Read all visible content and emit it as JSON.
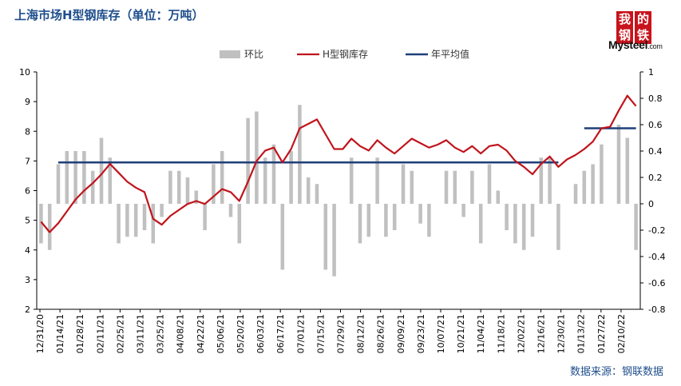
{
  "title": "上海市场H型钢库存（单位：万吨）",
  "source": "数据来源：钢联数据",
  "logo": {
    "chars": [
      "我",
      "的",
      "钢",
      "铁"
    ],
    "brand": "Mysteel",
    "suffix": ".com"
  },
  "colors": {
    "bar": "#c0c0c0",
    "line": "#c0141c",
    "avg": "#1f3f7a",
    "title": "#1f4e8c",
    "axis": "#000000"
  },
  "chart_data": {
    "type": "bar+line",
    "legend": [
      "环比",
      "H型钢库存",
      "年平均值"
    ],
    "legend_position": "top-center",
    "y_left": {
      "min": 2,
      "max": 10,
      "ticks": [
        2,
        3,
        4,
        5,
        6,
        7,
        8,
        9,
        10
      ]
    },
    "y_right": {
      "min": -0.8,
      "max": 1,
      "ticks": [
        -0.8,
        -0.6,
        -0.4,
        -0.2,
        0,
        0.2,
        0.4,
        0.6,
        0.8,
        1
      ]
    },
    "x_labels": [
      "12/31/20",
      "01/14/21",
      "01/28/21",
      "02/11/21",
      "02/25/21",
      "03/11/21",
      "03/25/21",
      "04/08/21",
      "04/22/21",
      "05/06/21",
      "05/20/21",
      "06/03/21",
      "06/17/21",
      "07/01/21",
      "07/15/21",
      "07/29/21",
      "08/12/21",
      "08/26/21",
      "09/09/21",
      "09/23/21",
      "10/07/21",
      "10/21/21",
      "11/04/21",
      "11/18/21",
      "12/02/21",
      "12/16/21",
      "12/30/21",
      "01/13/22",
      "01/27/22",
      "02/10/22"
    ],
    "stock": [
      4.95,
      4.6,
      4.9,
      5.3,
      5.7,
      6.0,
      6.25,
      6.55,
      6.9,
      6.6,
      6.3,
      6.1,
      5.95,
      5.05,
      4.85,
      5.15,
      5.35,
      5.55,
      5.65,
      5.55,
      5.8,
      6.05,
      5.95,
      5.65,
      6.3,
      7.0,
      7.35,
      7.45,
      6.95,
      7.4,
      8.1,
      8.25,
      8.4,
      7.9,
      7.4,
      7.4,
      7.75,
      7.5,
      7.35,
      7.7,
      7.45,
      7.25,
      7.5,
      7.75,
      7.6,
      7.45,
      7.55,
      7.7,
      7.45,
      7.3,
      7.5,
      7.25,
      7.5,
      7.55,
      7.35,
      7.0,
      6.8,
      6.55,
      6.9,
      7.15,
      6.8,
      7.05,
      7.2,
      7.4,
      7.65,
      8.1,
      8.15,
      8.7,
      9.2,
      8.85
    ],
    "mom": [
      -0.3,
      -0.35,
      0.3,
      0.4,
      0.4,
      0.4,
      0.25,
      0.5,
      0.35,
      -0.3,
      -0.25,
      -0.25,
      -0.2,
      -0.3,
      -0.1,
      0.25,
      0.25,
      0.2,
      0.1,
      -0.2,
      0.3,
      0.4,
      -0.1,
      -0.3,
      0.65,
      0.7,
      0.35,
      0.45,
      -0.5,
      0.4,
      0.75,
      0.2,
      0.15,
      -0.5,
      -0.55,
      0.0,
      0.35,
      -0.3,
      -0.25,
      0.35,
      -0.25,
      -0.2,
      0.3,
      0.25,
      -0.15,
      -0.25,
      0.0,
      0.25,
      0.25,
      -0.1,
      0.25,
      -0.3,
      0.3,
      0.1,
      -0.2,
      -0.3,
      -0.35,
      -0.25,
      0.35,
      0.35,
      -0.35,
      0.0,
      0.15,
      0.25,
      0.3,
      0.45,
      0.0,
      0.6,
      0.5,
      -0.35
    ],
    "annual_avg": [
      {
        "from": 2,
        "to": 60,
        "value": 6.95
      },
      {
        "from": 63,
        "to": 69,
        "value": 8.1
      }
    ]
  }
}
